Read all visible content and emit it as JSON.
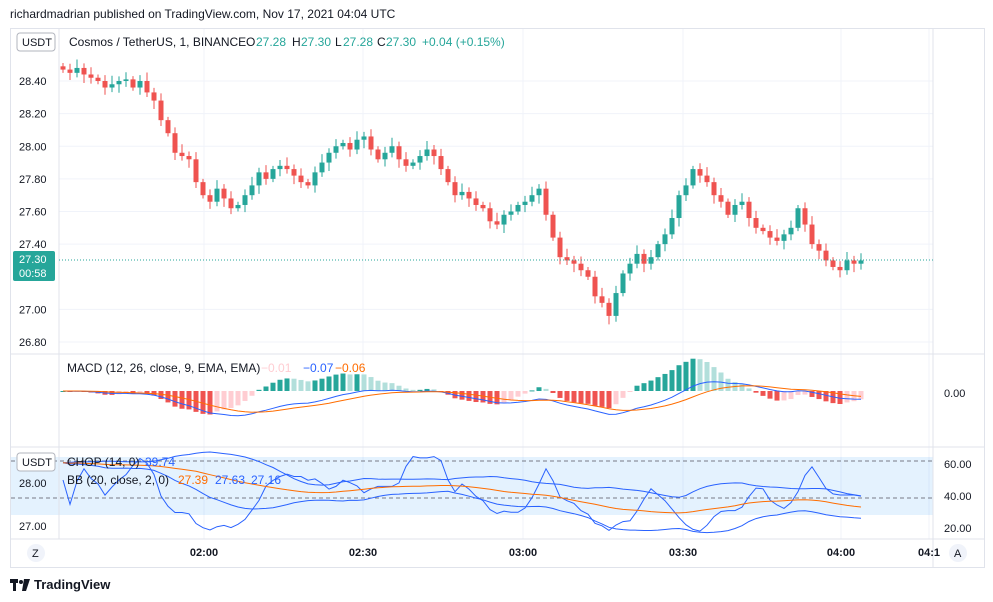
{
  "header": {
    "publisher": "richardmadrian published on TradingView.com, Nov 17, 2021 04:04 UTC"
  },
  "legend": {
    "badge": "USDT",
    "symbol": "Cosmos / TetherUS, 1, BINANCE",
    "o_label": "O",
    "o": "27.28",
    "h_label": "H",
    "h": "27.30",
    "l_label": "L",
    "l": "27.28",
    "c_label": "C",
    "c": "27.30",
    "change": "+0.04 (+0.15%)"
  },
  "price_badge": {
    "price": "27.30",
    "countdown": "00:58"
  },
  "macd_legend": {
    "label": "MACD (12, 26, close, 9, EMA, EMA)",
    "hist": "−0.01",
    "macd": "−0.07",
    "signal": "−0.06"
  },
  "lower_legend": {
    "badge": "USDT",
    "chop_label": "CHOP (14, 0)",
    "chop": "39.74",
    "bb_label": "BB (20, close, 2, 0)",
    "bb_basis": "27.39",
    "bb_upper": "27.63",
    "bb_lower": "27.16"
  },
  "colors": {
    "up": "#26a69a",
    "down": "#ef5350",
    "macd": "#2962ff",
    "signal": "#ff6d00",
    "chop_band": "#2196f3"
  },
  "footer": {
    "brand": "TradingView"
  },
  "icons": {
    "footer_logo": "tradingview-logo-icon",
    "z": "zoom-icon",
    "a": "auto-scale-icon"
  },
  "controls": {
    "z_label": "Z",
    "a_label": "A"
  },
  "chart_data": {
    "type": "candlestick",
    "price_axis": {
      "ticks": [
        "28.40",
        "28.20",
        "28.00",
        "27.80",
        "27.60",
        "27.40",
        "27.00",
        "26.80"
      ]
    },
    "time_axis": {
      "ticks": [
        "02:00",
        "02:30",
        "03:00",
        "03:30",
        "04:00",
        "04:1"
      ]
    },
    "macd_axis": {
      "ticks": [
        "0.00"
      ]
    },
    "chop_axis": {
      "ticks": [
        "60.00",
        "40.00",
        "20.00"
      ]
    },
    "bb_axis": {
      "ticks": [
        "28.00",
        "27.00"
      ]
    },
    "close": [
      28.47,
      28.45,
      28.48,
      28.44,
      28.42,
      28.4,
      28.36,
      28.38,
      28.4,
      28.41,
      28.36,
      28.4,
      28.33,
      28.28,
      28.16,
      28.08,
      27.96,
      27.94,
      27.92,
      27.78,
      27.7,
      27.66,
      27.74,
      27.68,
      27.62,
      27.64,
      27.7,
      27.76,
      27.84,
      27.8,
      27.86,
      27.88,
      27.86,
      27.82,
      27.78,
      27.76,
      27.84,
      27.9,
      27.96,
      28.0,
      28.02,
      27.98,
      28.04,
      28.06,
      27.98,
      27.92,
      27.96,
      28.0,
      27.92,
      27.88,
      27.9,
      27.94,
      27.98,
      27.94,
      27.86,
      27.78,
      27.7,
      27.72,
      27.68,
      27.64,
      27.62,
      27.54,
      27.52,
      27.58,
      27.6,
      27.64,
      27.66,
      27.7,
      27.74,
      27.58,
      27.44,
      27.32,
      27.3,
      27.28,
      27.24,
      27.2,
      27.08,
      27.04,
      26.96,
      27.1,
      27.22,
      27.28,
      27.34,
      27.28,
      27.32,
      27.4,
      27.46,
      27.56,
      27.7,
      27.76,
      27.86,
      27.82,
      27.78,
      27.7,
      27.66,
      27.58,
      27.64,
      27.66,
      27.56,
      27.5,
      27.48,
      27.44,
      27.42,
      27.46,
      27.5,
      27.62,
      27.52,
      27.4,
      27.36,
      27.3,
      27.26,
      27.24,
      27.3,
      27.28,
      27.3
    ]
  }
}
